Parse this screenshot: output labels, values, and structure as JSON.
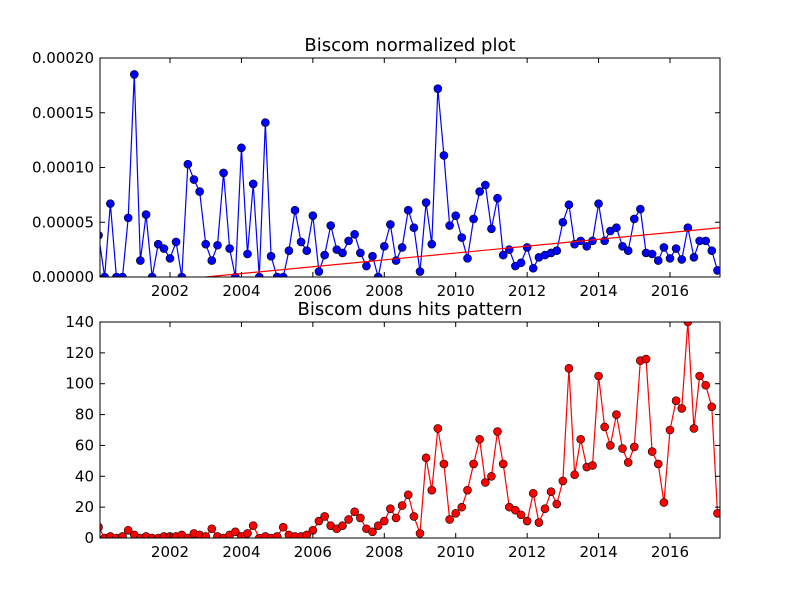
{
  "chart_data": [
    {
      "type": "line",
      "title": "Biscom normalized plot",
      "xlim": [
        2000.04,
        2017.4
      ],
      "xticks": [
        2002,
        2004,
        2006,
        2008,
        2010,
        2012,
        2014,
        2016
      ],
      "ylim": [
        0,
        0.0002
      ],
      "yticks": [
        {
          "value": 0,
          "label": "0.00000"
        },
        {
          "value": 5e-05,
          "label": "0.00005"
        },
        {
          "value": 0.0001,
          "label": "0.00010"
        },
        {
          "value": 0.00015,
          "label": "0.00015"
        },
        {
          "value": 0.0002,
          "label": "0.00020"
        }
      ],
      "series": [
        {
          "color": "#0000ff",
          "markers": true,
          "x": [
            2000,
            2000.17,
            2000.33,
            2000.5,
            2000.67,
            2000.83,
            2001,
            2001.17,
            2001.33,
            2001.5,
            2001.67,
            2001.83,
            2002,
            2002.17,
            2002.33,
            2002.5,
            2002.67,
            2002.83,
            2003,
            2003.17,
            2003.33,
            2003.5,
            2003.67,
            2003.83,
            2004,
            2004.17,
            2004.33,
            2004.5,
            2004.67,
            2004.83,
            2005,
            2005.17,
            2005.33,
            2005.5,
            2005.67,
            2005.83,
            2006,
            2006.17,
            2006.33,
            2006.5,
            2006.67,
            2006.83,
            2007,
            2007.17,
            2007.33,
            2007.5,
            2007.67,
            2007.83,
            2008,
            2008.17,
            2008.33,
            2008.5,
            2008.67,
            2008.83,
            2009,
            2009.17,
            2009.33,
            2009.5,
            2009.67,
            2009.83,
            2010,
            2010.17,
            2010.33,
            2010.5,
            2010.67,
            2010.83,
            2011,
            2011.17,
            2011.33,
            2011.5,
            2011.67,
            2011.83,
            2012,
            2012.17,
            2012.33,
            2012.5,
            2012.67,
            2012.83,
            2013,
            2013.17,
            2013.33,
            2013.5,
            2013.67,
            2013.83,
            2014,
            2014.17,
            2014.33,
            2014.5,
            2014.67,
            2014.83,
            2015,
            2015.17,
            2015.33,
            2015.5,
            2015.67,
            2015.83,
            2016,
            2016.17,
            2016.33,
            2016.5,
            2016.67,
            2016.83,
            2017,
            2017.17,
            2017.33
          ],
          "values": [
            3.8e-05,
            0,
            6.7e-05,
            0,
            0,
            5.4e-05,
            0.000185,
            1.5e-05,
            5.7e-05,
            0,
            3e-05,
            2.6e-05,
            1.7e-05,
            3.2e-05,
            0,
            0.000103,
            8.9e-05,
            7.8e-05,
            3e-05,
            1.5e-05,
            2.9e-05,
            9.5e-05,
            2.6e-05,
            0,
            0.000118,
            2.1e-05,
            8.5e-05,
            0,
            0.000141,
            1.9e-05,
            0,
            0,
            2.4e-05,
            6.1e-05,
            3.2e-05,
            2.4e-05,
            5.6e-05,
            5e-06,
            2e-05,
            4.7e-05,
            2.5e-05,
            2.2e-05,
            3.3e-05,
            3.9e-05,
            2.2e-05,
            1e-05,
            1.9e-05,
            0,
            2.8e-05,
            4.8e-05,
            1.5e-05,
            2.7e-05,
            6.1e-05,
            4.5e-05,
            5e-06,
            6.8e-05,
            3e-05,
            0.000172,
            0.000111,
            4.7e-05,
            5.6e-05,
            3.6e-05,
            1.7e-05,
            5.3e-05,
            7.8e-05,
            8.4e-05,
            4.4e-05,
            7.2e-05,
            2e-05,
            2.5e-05,
            1e-05,
            1.3e-05,
            2.7e-05,
            8e-06,
            1.8e-05,
            2e-05,
            2.2e-05,
            2.4e-05,
            5e-05,
            6.6e-05,
            3e-05,
            3.3e-05,
            2.8e-05,
            3.3e-05,
            6.7e-05,
            3.3e-05,
            4.2e-05,
            4.5e-05,
            2.8e-05,
            2.4e-05,
            5.3e-05,
            6.2e-05,
            2.2e-05,
            2.1e-05,
            1.5e-05,
            2.7e-05,
            1.7e-05,
            2.6e-05,
            1.6e-05,
            4.5e-05,
            1.8e-05,
            3.3e-05,
            3.3e-05,
            2.4e-05,
            6e-06
          ]
        },
        {
          "color": "#ff0000",
          "markers": false,
          "x": [
            2003,
            2017.4
          ],
          "values": [
            0,
            4.5e-05
          ]
        }
      ]
    },
    {
      "type": "line",
      "title": "Biscom duns hits pattern",
      "xlim": [
        2000.04,
        2017.4
      ],
      "xticks": [
        2002,
        2004,
        2006,
        2008,
        2010,
        2012,
        2014,
        2016
      ],
      "ylim": [
        0,
        140
      ],
      "yticks": [
        0,
        20,
        40,
        60,
        80,
        100,
        120,
        140
      ],
      "series": [
        {
          "color": "#ff0000",
          "markers": true,
          "x": [
            2000,
            2000.17,
            2000.33,
            2000.5,
            2000.67,
            2000.83,
            2001,
            2001.17,
            2001.33,
            2001.5,
            2001.67,
            2001.83,
            2002,
            2002.17,
            2002.33,
            2002.5,
            2002.67,
            2002.83,
            2003,
            2003.17,
            2003.33,
            2003.5,
            2003.67,
            2003.83,
            2004,
            2004.17,
            2004.33,
            2004.5,
            2004.67,
            2004.83,
            2005,
            2005.17,
            2005.33,
            2005.5,
            2005.67,
            2005.83,
            2006,
            2006.17,
            2006.33,
            2006.5,
            2006.67,
            2006.83,
            2007,
            2007.17,
            2007.33,
            2007.5,
            2007.67,
            2007.83,
            2008,
            2008.17,
            2008.33,
            2008.5,
            2008.67,
            2008.83,
            2009,
            2009.17,
            2009.33,
            2009.5,
            2009.67,
            2009.83,
            2010,
            2010.17,
            2010.33,
            2010.5,
            2010.67,
            2010.83,
            2011,
            2011.17,
            2011.33,
            2011.5,
            2011.67,
            2011.83,
            2012,
            2012.17,
            2012.33,
            2012.5,
            2012.67,
            2012.83,
            2013,
            2013.17,
            2013.33,
            2013.5,
            2013.67,
            2013.83,
            2014,
            2014.17,
            2014.33,
            2014.5,
            2014.67,
            2014.83,
            2015,
            2015.17,
            2015.33,
            2015.5,
            2015.67,
            2015.83,
            2016,
            2016.17,
            2016.33,
            2016.5,
            2016.67,
            2016.83,
            2017,
            2017.17,
            2017.33
          ],
          "values": [
            7,
            0,
            1,
            0,
            1,
            5,
            2,
            0,
            1,
            0,
            0,
            1,
            1,
            1,
            2,
            0,
            3,
            2,
            1,
            6,
            1,
            0,
            2,
            4,
            1,
            3,
            8,
            0,
            1,
            0,
            1,
            7,
            2,
            1,
            1,
            2,
            5,
            11,
            14,
            8,
            6,
            8,
            12,
            17,
            13,
            6,
            4,
            8,
            11,
            19,
            13,
            21,
            28,
            14,
            3,
            52,
            31,
            71,
            48,
            12,
            16,
            20,
            31,
            48,
            64,
            36,
            40,
            69,
            48,
            20,
            18,
            15,
            11,
            29,
            10,
            19,
            30,
            22,
            37,
            110,
            41,
            64,
            46,
            47,
            105,
            72,
            60,
            80,
            58,
            49,
            59,
            115,
            116,
            56,
            48,
            23,
            70,
            89,
            84,
            140,
            71,
            105,
            99,
            85,
            16
          ]
        }
      ]
    }
  ]
}
